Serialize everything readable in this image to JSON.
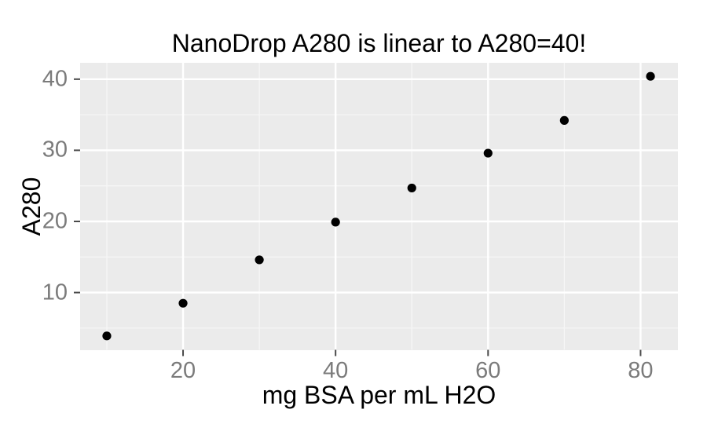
{
  "chart_data": {
    "type": "scatter",
    "title": "NanoDrop A280 is linear to A280=40!",
    "xlabel": "mg BSA per mL H2O",
    "ylabel": "A280",
    "points": [
      {
        "x": 10,
        "y": 3.9
      },
      {
        "x": 20,
        "y": 8.5
      },
      {
        "x": 30,
        "y": 14.6
      },
      {
        "x": 40,
        "y": 19.9
      },
      {
        "x": 50,
        "y": 24.7
      },
      {
        "x": 60,
        "y": 29.6
      },
      {
        "x": 70,
        "y": 34.2
      },
      {
        "x": 81.3,
        "y": 40.4
      }
    ],
    "xlim": [
      6.5,
      84.9
    ],
    "ylim": [
      1.95,
      42.3
    ],
    "x_major_ticks": [
      20,
      40,
      60,
      80
    ],
    "x_minor_gridlines": [
      10,
      30,
      50,
      70
    ],
    "y_major_ticks": [
      10,
      20,
      30,
      40
    ],
    "y_minor_gridlines": [
      5,
      15,
      25,
      35
    ],
    "grid": true,
    "legend": "none",
    "style": {
      "background": "#ffffff",
      "panel_background": "#ebebeb",
      "major_gridline_color": "#ffffff",
      "minor_gridline_color": "#f6f6f6",
      "point_color": "#000000",
      "point_radius": 5.6,
      "tick_label_color": "#7b7b7b",
      "tick_mark_color": "#4a4a4a",
      "text_color": "#000000"
    }
  }
}
